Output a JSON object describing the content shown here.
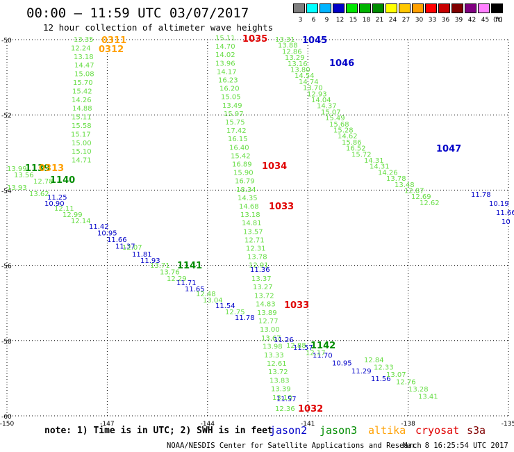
{
  "header": {
    "title": "00:00 – 11:59 UTC 03/07/2017",
    "subtitle": "12 hour collection of altimeter wave heights"
  },
  "color_scale": {
    "labels": [
      "3",
      "6",
      "9",
      "12",
      "15",
      "18",
      "21",
      "24",
      "27",
      "30",
      "33",
      "36",
      "39",
      "42",
      "45",
      "70"
    ],
    "colors": [
      "#7f7f7f",
      "#00ffff",
      "#00b4ff",
      "#0000c8",
      "#00e600",
      "#00b400",
      "#008c00",
      "#ffff00",
      "#ffc800",
      "#ffa000",
      "#ff0000",
      "#c80000",
      "#800000",
      "#800080",
      "#ff80ff",
      "#000000"
    ],
    "unit": "(ft)"
  },
  "map": {
    "lat_labels": [
      "-50",
      "-52",
      "-54",
      "-56",
      "-58",
      "-60"
    ],
    "lon_labels": [
      "-150",
      "-147",
      "-144",
      "-141",
      "-138",
      "-135"
    ],
    "lat_values": [
      -50,
      -52,
      -54,
      -56,
      -58,
      -60
    ],
    "lon_values": [
      -150,
      -147,
      -144,
      -141,
      -138,
      -135
    ]
  },
  "tracks": [
    {
      "name": "track-a",
      "color": "#66dd44",
      "labels": [
        "13.35",
        "12.24",
        "13.18",
        "14.47",
        "15.08",
        "15.70",
        "15.42",
        "14.26",
        "14.88",
        "15.11",
        "15.58",
        "15.17",
        "15.00",
        "15.10",
        "14.71"
      ]
    },
    {
      "name": "track-b",
      "color": "#66dd44",
      "labels": [
        "13.99",
        "13.56",
        "12.78",
        "13.93",
        "13.62"
      ]
    },
    {
      "name": "track-c",
      "color": "#0000c8",
      "labels": [
        "11.25",
        "10.90"
      ]
    },
    {
      "name": "track-d",
      "color": "#66dd44",
      "labels": [
        "12.11",
        "12.99",
        "12.14"
      ]
    },
    {
      "name": "track-e",
      "color": "#0000c8",
      "labels": [
        "11.42",
        "10.95",
        "11.66",
        "11.37"
      ]
    },
    {
      "name": "track-f",
      "color": "#66dd44",
      "labels": [
        "12.07"
      ]
    },
    {
      "name": "track-g",
      "color": "#0000c8",
      "labels": [
        "11.81",
        "11.93"
      ]
    },
    {
      "name": "track-h",
      "color": "#66dd44",
      "labels": [
        "13.71",
        "13.76",
        "12.29"
      ]
    },
    {
      "name": "track-i",
      "color": "#0000c8",
      "labels": [
        "11.71",
        "11.65"
      ]
    },
    {
      "name": "track-j",
      "color": "#66dd44",
      "labels": [
        "12.48",
        "13.04"
      ]
    },
    {
      "name": "track-k",
      "color": "#0000c8",
      "labels": [
        "11.54"
      ]
    },
    {
      "name": "track-l",
      "color": "#66dd44",
      "labels": [
        "12.75"
      ]
    },
    {
      "name": "track-m",
      "color": "#0000c8",
      "labels": [
        "11.78"
      ]
    },
    {
      "name": "track-n",
      "color": "#66dd44",
      "labels": [
        "15.11",
        "14.70",
        "14.02",
        "13.96",
        "14.17",
        "16.23",
        "16.20",
        "15.05",
        "13.49",
        "15.97",
        "15.75",
        "17.42",
        "16.15",
        "16.40",
        "15.42",
        "16.89",
        "15.90",
        "16.79",
        "18.34",
        "14.35",
        "14.68",
        "13.18",
        "14.81",
        "13.57",
        "12.71",
        "12.31",
        "13.78",
        "12.91"
      ]
    },
    {
      "name": "track-o",
      "color": "#0000c8",
      "labels": [
        "11.36"
      ]
    },
    {
      "name": "track-p",
      "color": "#66dd44",
      "labels": [
        "13.37",
        "13.27",
        "13.72",
        "14.83",
        "13.89",
        "12.77",
        "13.00",
        "13.67",
        "13.98",
        "13.33",
        "12.61",
        "13.72",
        "13.83",
        "13.39",
        "13.10"
      ]
    },
    {
      "name": "track-q",
      "color": "#0000c8",
      "labels": [
        "11.26",
        "11.57",
        "11.70",
        "10.95",
        "11.29",
        "11.56",
        "11.57"
      ]
    },
    {
      "name": "track-r",
      "color": "#66dd44",
      "labels": [
        "12.88",
        "12.17",
        "12.84",
        "12.33",
        "13.07",
        "12.76",
        "13.28",
        "13.41",
        "12.36"
      ]
    },
    {
      "name": "track-s",
      "color": "#66dd44",
      "labels": [
        "13.31",
        "13.88",
        "12.86",
        "13.29",
        "13.16",
        "13.80",
        "14.54",
        "14.74",
        "13.70",
        "12.93",
        "14.04",
        "14.37",
        "15.07",
        "15.49",
        "15.68",
        "15.28",
        "14.62",
        "15.86",
        "16.52",
        "15.72",
        "14.31",
        "14.31",
        "14.26",
        "13.78",
        "13.48",
        "12.87",
        "12.69",
        "12.62"
      ]
    },
    {
      "name": "track-t",
      "color": "#0000c8",
      "labels": [
        "11.78",
        "10.19",
        "11.66",
        "10"
      ]
    }
  ],
  "pass_ids": [
    {
      "text": "0311",
      "color": "#ffa000"
    },
    {
      "text": "0312",
      "color": "#ffa000"
    },
    {
      "text": "1035",
      "color": "#e00000"
    },
    {
      "text": "1045",
      "color": "#0000c8"
    },
    {
      "text": "1046",
      "color": "#0000c8"
    },
    {
      "text": "1047",
      "color": "#0000c8"
    },
    {
      "text": "1034",
      "color": "#e00000"
    },
    {
      "text": "1033",
      "color": "#e00000"
    },
    {
      "text": "1033",
      "color": "#e00000"
    },
    {
      "text": "1032",
      "color": "#e00000"
    },
    {
      "text": "1140",
      "color": "#008c00"
    },
    {
      "text": "1141",
      "color": "#008c00"
    },
    {
      "text": "1142",
      "color": "#008c00"
    },
    {
      "text": "1139",
      "color": "#008c00"
    },
    {
      "text": "0313",
      "color": "#ffa000"
    }
  ],
  "footer": {
    "note": "note: 1) Time is in UTC; 2) SWH is in feet",
    "credit": "NOAA/NESDIS Center for Satellite Applications and Research",
    "timestamp": "Mar  8 16:25:54 UTC 2017",
    "legend": [
      {
        "text": "jason2",
        "color": "#0000c8"
      },
      {
        "text": "jason3",
        "color": "#008c00"
      },
      {
        "text": "altika",
        "color": "#ffa000"
      },
      {
        "text": "cryosat",
        "color": "#e00000"
      },
      {
        "text": "s3a",
        "color": "#800000"
      }
    ]
  }
}
